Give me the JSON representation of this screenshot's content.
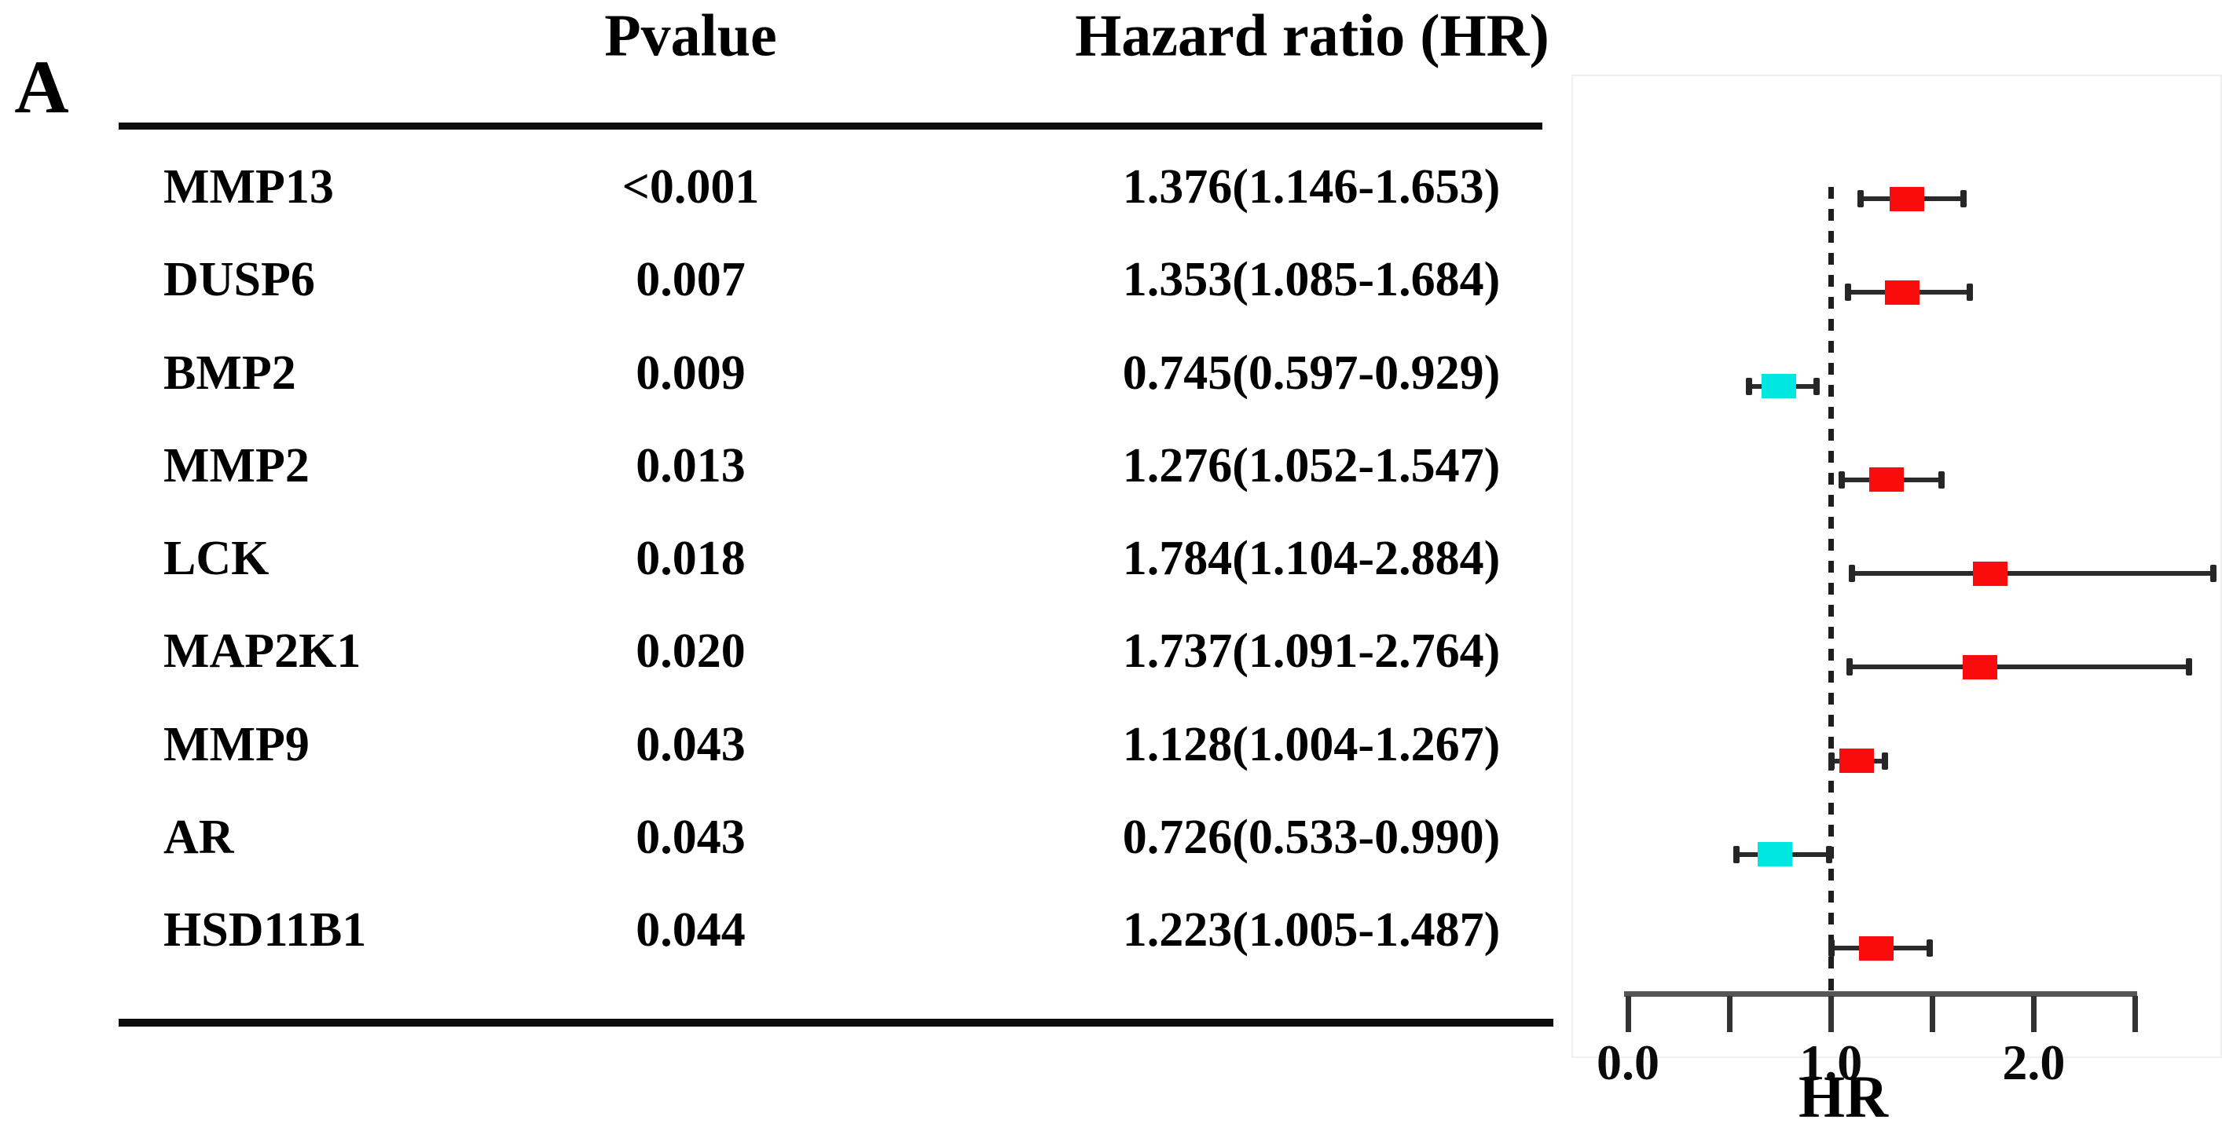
{
  "panel_label": "A",
  "table": {
    "headers": {
      "pvalue": "Pvalue",
      "hr": "Hazard ratio (HR)"
    },
    "rows": [
      {
        "gene": "MMP13",
        "pvalue": "<0.001",
        "hr_text": "1.376(1.146-1.653)",
        "hr": 1.376,
        "ci_low": 1.146,
        "ci_high": 1.653,
        "direction": "risk"
      },
      {
        "gene": "DUSP6",
        "pvalue": "0.007",
        "hr_text": "1.353(1.085-1.684)",
        "hr": 1.353,
        "ci_low": 1.085,
        "ci_high": 1.684,
        "direction": "risk"
      },
      {
        "gene": "BMP2",
        "pvalue": "0.009",
        "hr_text": "0.745(0.597-0.929)",
        "hr": 0.745,
        "ci_low": 0.597,
        "ci_high": 0.929,
        "direction": "protective"
      },
      {
        "gene": "MMP2",
        "pvalue": "0.013",
        "hr_text": "1.276(1.052-1.547)",
        "hr": 1.276,
        "ci_low": 1.052,
        "ci_high": 1.547,
        "direction": "risk"
      },
      {
        "gene": "LCK",
        "pvalue": "0.018",
        "hr_text": "1.784(1.104-2.884)",
        "hr": 1.784,
        "ci_low": 1.104,
        "ci_high": 2.884,
        "direction": "risk"
      },
      {
        "gene": "MAP2K1",
        "pvalue": "0.020",
        "hr_text": "1.737(1.091-2.764)",
        "hr": 1.737,
        "ci_low": 1.091,
        "ci_high": 2.764,
        "direction": "risk"
      },
      {
        "gene": "MMP9",
        "pvalue": "0.043",
        "hr_text": "1.128(1.004-1.267)",
        "hr": 1.128,
        "ci_low": 1.004,
        "ci_high": 1.267,
        "direction": "risk"
      },
      {
        "gene": "AR",
        "pvalue": "0.043",
        "hr_text": "0.726(0.533-0.990)",
        "hr": 0.726,
        "ci_low": 0.533,
        "ci_high": 0.99,
        "direction": "protective"
      },
      {
        "gene": "HSD11B1",
        "pvalue": "0.044",
        "hr_text": "1.223(1.005-1.487)",
        "hr": 1.223,
        "ci_low": 1.005,
        "ci_high": 1.487,
        "direction": "risk"
      }
    ]
  },
  "chart_data": {
    "type": "scatter",
    "subtype": "forest-plot",
    "xlabel": "HR",
    "xlim": [
      0.0,
      2.55
    ],
    "x_ticks": [
      0.0,
      0.5,
      1.0,
      1.5,
      2.0,
      2.5
    ],
    "x_tick_labels": [
      {
        "value": 0.0,
        "label": "0.0"
      },
      {
        "value": 1.0,
        "label": "1.0"
      },
      {
        "value": 2.0,
        "label": "2.0"
      }
    ],
    "reference_line_x": 1.0,
    "grid": false,
    "legend": false,
    "categories": [
      "MMP13",
      "DUSP6",
      "BMP2",
      "MMP2",
      "LCK",
      "MAP2K1",
      "MMP9",
      "AR",
      "HSD11B1"
    ],
    "series": [
      {
        "name": "hazard_ratio",
        "values": [
          1.376,
          1.353,
          0.745,
          1.276,
          1.784,
          1.737,
          1.128,
          0.726,
          1.223
        ]
      },
      {
        "name": "ci_lower",
        "values": [
          1.146,
          1.085,
          0.597,
          1.052,
          1.104,
          1.091,
          1.004,
          0.533,
          1.005
        ]
      },
      {
        "name": "ci_upper",
        "values": [
          1.653,
          1.684,
          0.929,
          1.547,
          2.884,
          2.764,
          1.267,
          0.99,
          1.487
        ]
      },
      {
        "name": "pvalues",
        "values": [
          "<0.001",
          "0.007",
          "0.009",
          "0.013",
          "0.018",
          "0.020",
          "0.043",
          "0.043",
          "0.044"
        ]
      }
    ],
    "colors": {
      "risk": "#fb0c0c",
      "protective": "#00e6e0",
      "ci_line": "#2b2b2b",
      "reference_line": "#1e1e1e",
      "axis_line": "#555555",
      "tick": "#333333"
    }
  }
}
